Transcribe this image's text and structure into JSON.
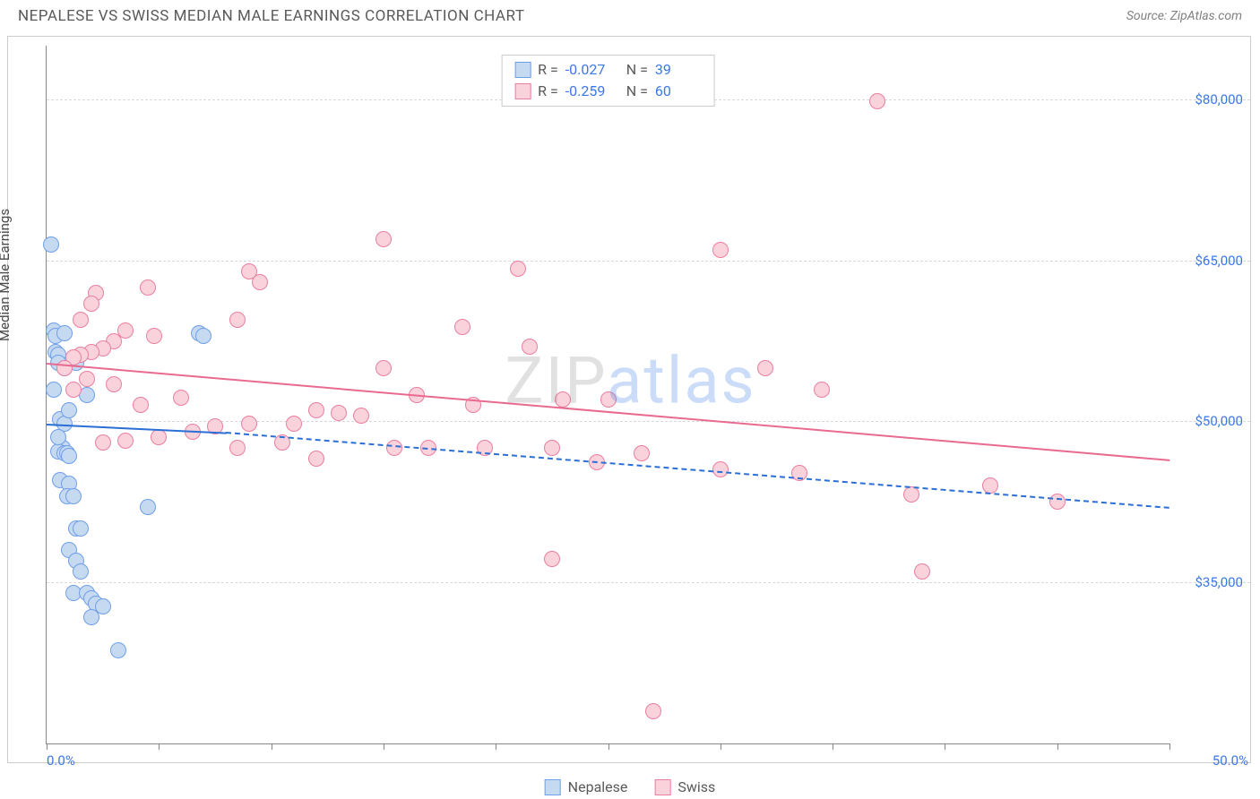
{
  "title": "NEPALESE VS SWISS MEDIAN MALE EARNINGS CORRELATION CHART",
  "source": "Source: ZipAtlas.com",
  "watermark_a": "ZIP",
  "watermark_b": "atlas",
  "chart": {
    "type": "scatter",
    "y_axis_label": "Median Male Earnings",
    "x_min": 0.0,
    "x_max": 50.0,
    "y_min": 20000,
    "y_max": 85000,
    "x_min_label": "0.0%",
    "x_max_label": "50.0%",
    "y_ticks": [
      35000,
      50000,
      65000,
      80000
    ],
    "y_tick_labels": [
      "$35,000",
      "$50,000",
      "$65,000",
      "$80,000"
    ],
    "x_tick_positions": [
      0,
      5,
      10,
      15,
      20,
      25,
      30,
      35,
      40,
      45,
      50
    ],
    "grid_color": "#d8d8d8",
    "background_color": "#ffffff",
    "marker_radius": 9,
    "marker_stroke_width": 1.5,
    "series": [
      {
        "name": "Nepalese",
        "fill": "#c5d9f1",
        "stroke": "#6f9fe8",
        "line_color": "#2b6fd6",
        "r_value": "-0.027",
        "n_value": "39",
        "trend": {
          "x1": 0,
          "y1": 49800,
          "x2": 8,
          "y2": 49000,
          "solid_to_x": 8,
          "dash_to_x": 50,
          "dash_y2": 42000
        },
        "points": [
          [
            0.2,
            66500
          ],
          [
            0.3,
            58500
          ],
          [
            0.4,
            58000
          ],
          [
            0.4,
            56500
          ],
          [
            0.5,
            56200
          ],
          [
            0.5,
            55500
          ],
          [
            0.8,
            58200
          ],
          [
            0.8,
            55000
          ],
          [
            0.6,
            50200
          ],
          [
            0.8,
            49800
          ],
          [
            0.7,
            47500
          ],
          [
            0.5,
            47200
          ],
          [
            0.8,
            47000
          ],
          [
            0.9,
            47000
          ],
          [
            1.0,
            46800
          ],
          [
            0.6,
            44500
          ],
          [
            1.0,
            44200
          ],
          [
            0.9,
            43000
          ],
          [
            1.2,
            43000
          ],
          [
            1.3,
            40000
          ],
          [
            1.5,
            40000
          ],
          [
            1.0,
            38000
          ],
          [
            1.3,
            37000
          ],
          [
            1.5,
            36000
          ],
          [
            1.2,
            34000
          ],
          [
            1.8,
            34000
          ],
          [
            2.0,
            33500
          ],
          [
            2.2,
            33000
          ],
          [
            2.5,
            32800
          ],
          [
            2.0,
            31800
          ],
          [
            3.2,
            28700
          ],
          [
            4.5,
            42000
          ],
          [
            1.8,
            52500
          ],
          [
            6.8,
            58200
          ],
          [
            7.0,
            58000
          ],
          [
            1.3,
            55500
          ],
          [
            0.3,
            53000
          ],
          [
            1.0,
            51000
          ],
          [
            0.5,
            48500
          ]
        ]
      },
      {
        "name": "Swiss",
        "fill": "#f9d2dc",
        "stroke": "#e97fa0",
        "line_color": "#e86a8f",
        "r_value": "-0.259",
        "n_value": "60",
        "trend": {
          "x1": 0,
          "y1": 55500,
          "x2": 50,
          "y2": 46500,
          "solid_to_x": 50
        },
        "points": [
          [
            37.0,
            79800
          ],
          [
            15.0,
            67000
          ],
          [
            21.0,
            64200
          ],
          [
            30.0,
            66000
          ],
          [
            9.0,
            64000
          ],
          [
            9.5,
            63000
          ],
          [
            4.5,
            62500
          ],
          [
            2.2,
            62000
          ],
          [
            2.0,
            61000
          ],
          [
            1.5,
            59500
          ],
          [
            8.5,
            59500
          ],
          [
            3.5,
            58500
          ],
          [
            4.8,
            58000
          ],
          [
            3.0,
            57500
          ],
          [
            2.5,
            56800
          ],
          [
            2.0,
            56500
          ],
          [
            1.5,
            56200
          ],
          [
            1.2,
            56000
          ],
          [
            18.5,
            58800
          ],
          [
            15.0,
            55000
          ],
          [
            21.5,
            57000
          ],
          [
            23.0,
            52000
          ],
          [
            25.0,
            52000
          ],
          [
            19.0,
            51500
          ],
          [
            12.0,
            51000
          ],
          [
            13.0,
            50800
          ],
          [
            14.0,
            50500
          ],
          [
            11.0,
            49800
          ],
          [
            9.0,
            49800
          ],
          [
            7.5,
            49500
          ],
          [
            6.5,
            49000
          ],
          [
            5.0,
            48500
          ],
          [
            3.5,
            48200
          ],
          [
            2.5,
            48000
          ],
          [
            10.5,
            48000
          ],
          [
            15.5,
            47500
          ],
          [
            17.0,
            47500
          ],
          [
            19.5,
            47500
          ],
          [
            22.5,
            47500
          ],
          [
            8.5,
            47500
          ],
          [
            24.5,
            46200
          ],
          [
            26.5,
            47000
          ],
          [
            30.0,
            45500
          ],
          [
            33.5,
            45200
          ],
          [
            32.0,
            55000
          ],
          [
            34.5,
            53000
          ],
          [
            38.5,
            43200
          ],
          [
            42.0,
            44000
          ],
          [
            45.0,
            42500
          ],
          [
            39.0,
            36000
          ],
          [
            22.5,
            37200
          ],
          [
            27.0,
            23000
          ],
          [
            12.0,
            46500
          ],
          [
            6.0,
            52200
          ],
          [
            4.2,
            51500
          ],
          [
            3.0,
            53500
          ],
          [
            1.8,
            54000
          ],
          [
            1.2,
            53000
          ],
          [
            0.8,
            55000
          ],
          [
            16.5,
            52500
          ]
        ]
      }
    ],
    "bottom_legend": [
      {
        "label": "Nepalese",
        "fill": "#c5d9f1",
        "stroke": "#6f9fe8"
      },
      {
        "label": "Swiss",
        "fill": "#f9d2dc",
        "stroke": "#e97fa0"
      }
    ]
  }
}
